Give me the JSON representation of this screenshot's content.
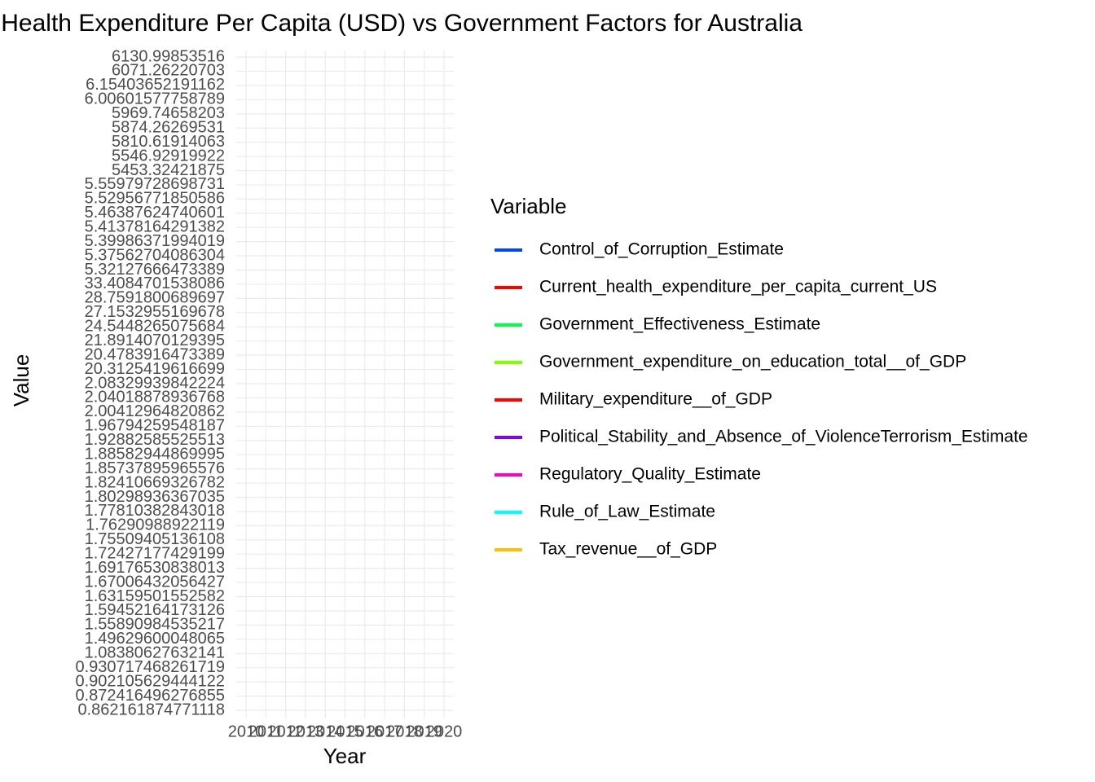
{
  "chart_data": {
    "type": "line",
    "title": "Health Expenditure Per Capita (USD) vs Government Factors for Australia",
    "x_label": "Year",
    "y_label": "Value",
    "categories": [
      "2010",
      "2011",
      "2012",
      "2013",
      "2014",
      "2015",
      "2016",
      "2017",
      "2018",
      "2019",
      "2020"
    ],
    "y_categories": [
      "6130.99853516",
      "6071.26220703",
      "6.15403652191162",
      "6.00601577758789",
      "5969.74658203",
      "5874.26269531",
      "5810.61914063",
      "5546.92919922",
      "5453.32421875",
      "5.55979728698731",
      "5.52956771850586",
      "5.46387624740601",
      "5.41378164291382",
      "5.39986371994019",
      "5.37562704086304",
      "5.32127666473389",
      "33.4084701538086",
      "28.7591800689697",
      "27.1532955169678",
      "24.5448265075684",
      "21.8914070129395",
      "20.4783916473389",
      "20.3125419616699",
      "2.08329939842224",
      "2.04018878936768",
      "2.00412964820862",
      "1.96794259548187",
      "1.92882585525513",
      "1.88582944869995",
      "1.85737895965576",
      "1.82410669326782",
      "1.80298936367035",
      "1.77810382843018",
      "1.76290988922119",
      "1.75509405136108",
      "1.72427177429199",
      "1.69176530838013",
      "1.67006432056427",
      "1.63159501552582",
      "1.59452164173126",
      "1.55890984535217",
      "1.49629600048065",
      "1.08380627632141",
      "0.930717468261719",
      "0.902105629444122",
      "0.872416496276855",
      "0.862161874771118"
    ],
    "legend_title": "Variable",
    "series": [
      {
        "name": "Control_of_Corruption_Estimate",
        "color": "#0047ff",
        "values": [
          null,
          null,
          null,
          null,
          null,
          null,
          null,
          null,
          null,
          null,
          null
        ]
      },
      {
        "name": "Current_health_expenditure_per_capita_current_US",
        "color": "#ff0000",
        "values": [
          null,
          null,
          null,
          null,
          null,
          null,
          null,
          null,
          null,
          null,
          null
        ]
      },
      {
        "name": "Government_Effectiveness_Estimate",
        "color": "#00ff40",
        "values": [
          null,
          null,
          null,
          null,
          null,
          null,
          null,
          null,
          null,
          null,
          null
        ]
      },
      {
        "name": "Government_expenditure_on_education_total__of_GDP",
        "color": "#80ff00",
        "values": [
          null,
          null,
          null,
          null,
          null,
          null,
          null,
          null,
          null,
          null,
          null
        ]
      },
      {
        "name": "Military_expenditure__of_GDP",
        "color": "#ff0000",
        "values": [
          null,
          null,
          null,
          null,
          null,
          null,
          null,
          null,
          null,
          null,
          null
        ]
      },
      {
        "name": "Political_Stability_and_Absence_of_ViolenceTerrorism_Estimate",
        "color": "#8000ff",
        "values": [
          null,
          null,
          null,
          null,
          null,
          null,
          null,
          null,
          null,
          null,
          null
        ]
      },
      {
        "name": "Regulatory_Quality_Estimate",
        "color": "#ff00bf",
        "values": [
          null,
          null,
          null,
          null,
          null,
          null,
          null,
          null,
          null,
          null,
          null
        ]
      },
      {
        "name": "Rule_of_Law_Estimate",
        "color": "#00ffff",
        "values": [
          null,
          null,
          null,
          null,
          null,
          null,
          null,
          null,
          null,
          null,
          null
        ]
      },
      {
        "name": "Tax_revenue__of_GDP",
        "color": "#ffbf00",
        "values": [
          null,
          null,
          null,
          null,
          null,
          null,
          null,
          null,
          null,
          null,
          null
        ]
      }
    ],
    "grid": true
  }
}
